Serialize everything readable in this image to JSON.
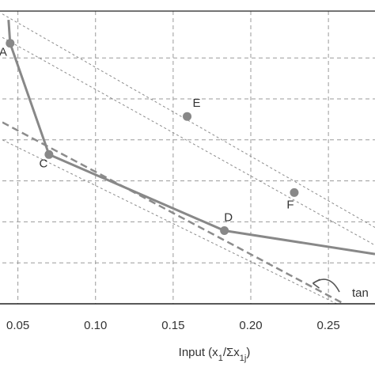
{
  "chart_data": {
    "type": "scatter",
    "title": "",
    "xlabel": "Input (x1/Σx1j)",
    "ylabel": "",
    "xlim": [
      0.04,
      0.28
    ],
    "ylim": [
      0.0,
      1.0
    ],
    "grid": true,
    "x_ticks": [
      0.05,
      0.1,
      0.15,
      0.2,
      0.25
    ],
    "x_tick_labels": [
      "0.05",
      "0.10",
      "0.15",
      "0.20",
      "0.25"
    ],
    "y_ticks": [
      0.14,
      0.28,
      0.42,
      0.56,
      0.7,
      0.84
    ],
    "points": [
      {
        "label": "A",
        "x": 0.045,
        "y": 0.89
      },
      {
        "label": "C",
        "x": 0.07,
        "y": 0.51
      },
      {
        "label": "D",
        "x": 0.183,
        "y": 0.25
      },
      {
        "label": "E",
        "x": 0.159,
        "y": 0.64
      },
      {
        "label": "F",
        "x": 0.228,
        "y": 0.38
      }
    ],
    "frontier": [
      [
        0.044,
        0.97
      ],
      [
        0.045,
        0.89
      ],
      [
        0.07,
        0.51
      ],
      [
        0.183,
        0.25
      ],
      [
        0.28,
        0.17
      ]
    ],
    "tangent_line": [
      [
        0.04,
        0.62
      ],
      [
        0.26,
        0.0
      ]
    ],
    "parallel_lines": [
      [
        [
          0.04,
          0.99
        ],
        [
          0.3,
          0.2
        ]
      ],
      [
        [
          0.04,
          0.91
        ],
        [
          0.28,
          0.2
        ]
      ],
      [
        [
          0.04,
          0.56
        ],
        [
          0.29,
          -0.09
        ]
      ]
    ],
    "annotation": {
      "text": "tan",
      "arrow_from": [
        0.253,
        0.035
      ],
      "arrow_to": [
        0.24,
        0.07
      ]
    }
  },
  "colors": {
    "frontier": "#888888",
    "points": "#888888",
    "grid": "#9a9a9a",
    "axis": "#222222",
    "text": "#333333",
    "dashed": "#8c8c8c"
  }
}
